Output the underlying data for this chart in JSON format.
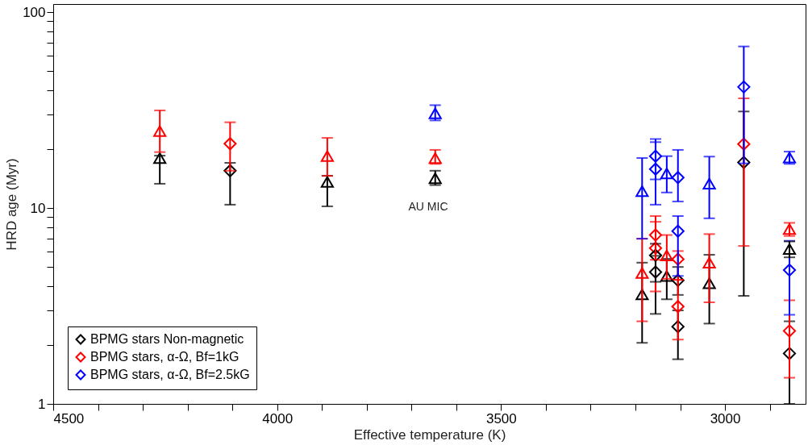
{
  "chart_data": {
    "type": "scatter",
    "xlabel": "Effective temperature (K)",
    "ylabel": "HRD age (Myr)",
    "xlim": [
      4500,
      2820
    ],
    "xticks": [
      4500,
      {
        "value": 4400,
        "label": null
      },
      {
        "value": 4300,
        "label": null
      },
      {
        "value": 4200,
        "label": null
      },
      {
        "value": 4100,
        "label": null
      },
      4000,
      {
        "value": 3900,
        "label": null
      },
      {
        "value": 3800,
        "label": null
      },
      {
        "value": 3700,
        "label": null
      },
      {
        "value": 3600,
        "label": null
      },
      3500,
      {
        "value": 3400,
        "label": null
      },
      {
        "value": 3300,
        "label": null
      },
      {
        "value": 3200,
        "label": null
      },
      {
        "value": 3100,
        "label": null
      },
      3000,
      {
        "value": 2900,
        "label": null
      }
    ],
    "ylim": [
      1,
      110
    ],
    "log": true,
    "yticks": [
      1,
      {
        "value": 2,
        "label": null
      },
      {
        "value": 3,
        "label": null
      },
      {
        "value": 4,
        "label": null
      },
      {
        "value": 5,
        "label": null
      },
      {
        "value": 6,
        "label": null
      },
      {
        "value": 7,
        "label": null
      },
      {
        "value": 8,
        "label": null
      },
      {
        "value": 9,
        "label": null
      },
      10,
      {
        "value": 20,
        "label": null
      },
      {
        "value": 30,
        "label": null
      },
      {
        "value": 40,
        "label": null
      },
      {
        "value": 50,
        "label": null
      },
      {
        "value": 60,
        "label": null
      },
      {
        "value": 70,
        "label": null
      },
      {
        "value": 80,
        "label": null
      },
      {
        "value": 90,
        "label": null
      },
      100
    ],
    "grid": false,
    "legend": "bottom left",
    "annotations": [
      "AU MIC"
    ],
    "series": [
      {
        "name": "BPMG stars Non-magnetic",
        "color": "#000000",
        "marker": "diamond",
        "x": [
          4105,
          3155,
          3105,
          2856
        ],
        "values": [
          15.5,
          4.71,
          4.27,
          1.81
        ],
        "errors": [
          [
            10.4,
            17
          ],
          [
            2.88,
            5.7
          ],
          [
            3.6,
            5.0
          ],
          [
            1.0,
            2.64
          ]
        ]
      },
      {
        "name": "BPMG stars, α-Ω, Bf=1kG",
        "color": "#ff0000",
        "marker": "diamond",
        "x": [
          4105,
          3155,
          3105,
          2856
        ],
        "values": [
          21.3,
          6.24,
          5.48,
          2.36
        ],
        "errors": [
          [
            15.5,
            27.4
          ],
          [
            3.75,
            8.5
          ],
          [
            4.3,
            6.03
          ],
          [
            1.36,
            3.38
          ]
        ]
      },
      {
        "name": "BPMG stars, α-Ω, Bf=2.5kG",
        "color": "#0000ff",
        "marker": "diamond",
        "x": [
          3155,
          3105,
          2856
        ],
        "values": [
          15.8,
          14.3,
          4.82
        ],
        "errors": [
          [
            10.4,
            21.7
          ],
          [
            10.8,
            19.8
          ],
          [
            2.85,
            6.8
          ]
        ]
      },
      {
        "color": "#000000",
        "marker": "triangle",
        "x": [
          4262,
          3888,
          3647,
          3185,
          3035
        ],
        "values": [
          18.0,
          13.6,
          14.2,
          3.62,
          4.13
        ],
        "errors": [
          [
            13.3,
            18.5
          ],
          [
            10.2,
            14.6
          ],
          [
            13.1,
            15.5
          ],
          [
            2.05,
            5.26
          ],
          [
            2.57,
            5.77
          ]
        ]
      },
      {
        "color": "#ff0000",
        "marker": "triangle",
        "x": [
          4262,
          3888,
          3647,
          3185,
          3035
        ],
        "values": [
          24.7,
          18.4,
          18.0,
          4.66,
          5.26
        ],
        "errors": [
          [
            19.3,
            31.5
          ],
          [
            14.6,
            22.8
          ],
          [
            16.8,
            19.8
          ],
          [
            2.64,
            6.97
          ],
          [
            3.3,
            7.36
          ]
        ]
      },
      {
        "color": "#0000ff",
        "marker": "triangle",
        "x": [
          3647,
          3185,
          3035
        ],
        "values": [
          30.4,
          12.2,
          13.3
        ],
        "errors": [
          [
            28.0,
            33.5
          ],
          [
            6.97,
            18.0
          ],
          [
            8.86,
            18.3
          ]
        ]
      },
      {
        "color": "#000000",
        "marker": "diamond",
        "x": [
          3155,
          3105,
          2958
        ],
        "values": [
          5.73,
          2.48,
          17.1
        ],
        "errors": [
          [
            4.2,
            6.57
          ],
          [
            1.69,
            3.0
          ],
          [
            3.56,
            31.1
          ]
        ]
      },
      {
        "color": "#ff0000",
        "marker": "diamond",
        "x": [
          3155,
          3105,
          2958
        ],
        "values": [
          7.28,
          3.14,
          21.2
        ],
        "errors": [
          [
            5.44,
            9.1
          ],
          [
            2.13,
            4.3
          ],
          [
            6.4,
            36.3
          ]
        ]
      },
      {
        "color": "#0000ff",
        "marker": "diamond",
        "x": [
          3155,
          3105,
          2958
        ],
        "values": [
          18.4,
          7.62,
          41.5
        ],
        "errors": [
          [
            14,
            22.5
          ],
          [
            4.5,
            9.1
          ],
          [
            16.9,
            66.8
          ]
        ]
      },
      {
        "color": "#000000",
        "marker": "triangle",
        "x": [
          3130,
          2856
        ],
        "values": [
          4.5,
          6.17
        ],
        "errors": [
          [
            3.42,
            5.5
          ],
          [
            5.6,
            6.75
          ]
        ]
      },
      {
        "color": "#ff0000",
        "marker": "triangle",
        "x": [
          3130,
          2856
        ],
        "values": [
          5.73,
          7.8
        ],
        "errors": [
          [
            4.35,
            7.28
          ],
          [
            7.2,
            8.4
          ]
        ]
      },
      {
        "color": "#0000ff",
        "marker": "triangle",
        "x": [
          3130,
          2856
        ],
        "values": [
          15.0,
          18.1
        ],
        "errors": [
          [
            12.0,
            18.4
          ],
          [
            16.8,
            19.4
          ]
        ]
      }
    ]
  }
}
